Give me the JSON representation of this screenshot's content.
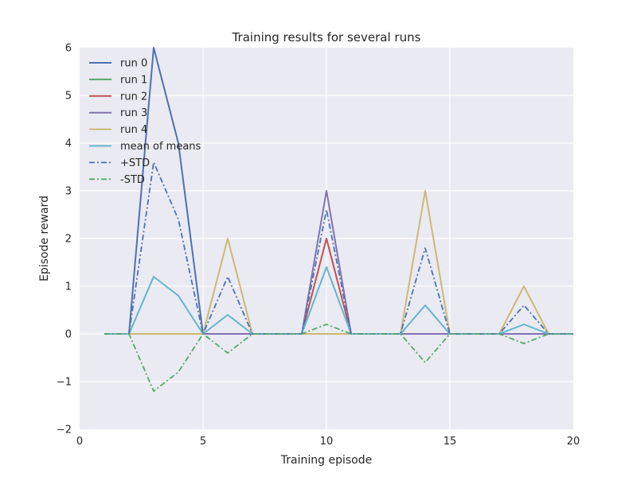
{
  "chart_data": {
    "type": "line",
    "title": "Training results for several runs",
    "xlabel": "Training episode",
    "ylabel": "Episode reward",
    "xlim": [
      0,
      20
    ],
    "ylim": [
      -2,
      6
    ],
    "xticks": [
      0,
      5,
      10,
      15,
      20
    ],
    "xtick_labels": [
      "0",
      "5",
      "10",
      "15",
      "20"
    ],
    "yticks": [
      -2,
      -1,
      0,
      1,
      2,
      3,
      4,
      5,
      6
    ],
    "ytick_labels": [
      "−2",
      "−1",
      "0",
      "1",
      "2",
      "3",
      "4",
      "5",
      "6"
    ],
    "grid": true,
    "legend_position": "top-left",
    "x": [
      1,
      2,
      3,
      4,
      5,
      6,
      7,
      8,
      9,
      10,
      11,
      12,
      13,
      14,
      15,
      16,
      17,
      18,
      19,
      20
    ],
    "series": [
      {
        "name": "run 0",
        "color": "#4c72b0",
        "style": "solid",
        "values": [
          0,
          0,
          6,
          4,
          0,
          0,
          0,
          0,
          0,
          0,
          0,
          0,
          0,
          0,
          0,
          0,
          0,
          0,
          0,
          0
        ]
      },
      {
        "name": "run 1",
        "color": "#55a868",
        "style": "solid",
        "values": [
          0,
          0,
          0,
          0,
          0,
          0,
          0,
          0,
          0,
          0,
          0,
          0,
          0,
          0,
          0,
          0,
          0,
          0,
          0,
          0
        ]
      },
      {
        "name": "run 2",
        "color": "#c44e52",
        "style": "solid",
        "values": [
          0,
          0,
          0,
          0,
          0,
          0,
          0,
          0,
          0,
          2,
          0,
          0,
          0,
          0,
          0,
          0,
          0,
          0,
          0,
          0
        ]
      },
      {
        "name": "run 3",
        "color": "#8172b2",
        "style": "solid",
        "values": [
          0,
          0,
          0,
          0,
          0,
          0,
          0,
          0,
          0,
          3,
          0,
          0,
          0,
          0,
          0,
          0,
          0,
          0,
          0,
          0
        ]
      },
      {
        "name": "run 4",
        "color": "#ccb974",
        "style": "solid",
        "values": [
          0,
          0,
          0,
          0,
          0,
          2,
          0,
          0,
          0,
          0,
          0,
          0,
          0,
          3,
          0,
          0,
          0,
          1,
          0,
          0
        ]
      },
      {
        "name": "mean of means",
        "color": "#64b5cd",
        "style": "solid",
        "values": [
          0,
          0,
          1.2,
          0.8,
          0,
          0.4,
          0,
          0,
          0,
          1.4,
          0,
          0,
          0,
          0.6,
          0,
          0,
          0,
          0.2,
          0,
          0
        ]
      },
      {
        "name": "+STD",
        "color": "#4c72b0",
        "style": "dashdot",
        "values": [
          0,
          0,
          3.6,
          2.4,
          0,
          1.2,
          0,
          0,
          0,
          2.6,
          0,
          0,
          0,
          1.8,
          0,
          0,
          0,
          0.6,
          0,
          0
        ]
      },
      {
        "name": "-STD",
        "color": "#55a868",
        "style": "dashdot",
        "values": [
          0,
          0,
          -1.2,
          -0.8,
          0,
          -0.4,
          0,
          0,
          0,
          0.2,
          0,
          0,
          0,
          -0.6,
          0,
          0,
          0,
          -0.2,
          0,
          0
        ]
      }
    ]
  }
}
